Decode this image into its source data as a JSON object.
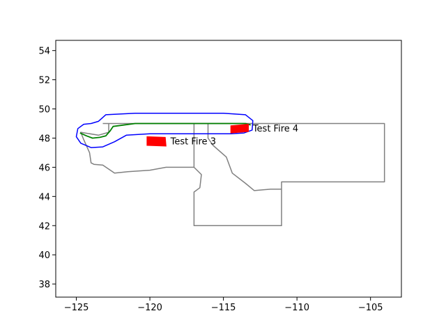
{
  "chart_data": {
    "type": "map",
    "title": "",
    "xlabel": "",
    "ylabel": "",
    "xlim": [
      -126.4,
      -102.9
    ],
    "ylim": [
      37.1,
      54.7
    ],
    "grid": false,
    "x_ticks": [
      -125,
      -120,
      -115,
      -110,
      -105
    ],
    "y_ticks": [
      38,
      40,
      42,
      44,
      46,
      48,
      50,
      52,
      54
    ],
    "x_tick_labels": [
      "−125",
      "−120",
      "−115",
      "−110",
      "−105"
    ],
    "y_tick_labels": [
      "38",
      "40",
      "42",
      "44",
      "46",
      "48",
      "50",
      "52",
      "54"
    ],
    "colors": {
      "states": "#808080",
      "border": "#008000",
      "buffer": "#0000ff",
      "fire": "#ff0000"
    },
    "states_outline": [
      [
        [
          -123.2,
          49.0
        ],
        [
          -117.0,
          49.0
        ],
        [
          -116.05,
          49.0
        ],
        [
          -111.0,
          49.0
        ],
        [
          -104.05,
          49.0
        ],
        [
          -104.05,
          45.0
        ],
        [
          -111.05,
          45.0
        ],
        [
          -111.05,
          44.5
        ],
        [
          -111.05,
          42.0
        ],
        [
          -117.0,
          42.0
        ],
        [
          -117.0,
          44.3
        ],
        [
          -116.6,
          44.6
        ],
        [
          -116.5,
          45.5
        ],
        [
          -117.0,
          46.0
        ],
        [
          -118.9,
          46.0
        ],
        [
          -120.0,
          45.8
        ],
        [
          -121.5,
          45.7
        ],
        [
          -122.4,
          45.6
        ],
        [
          -123.2,
          46.15
        ],
        [
          -123.8,
          46.2
        ],
        [
          -124.0,
          46.3
        ],
        [
          -124.1,
          47.0
        ],
        [
          -124.5,
          47.9
        ],
        [
          -124.7,
          48.4
        ],
        [
          -123.5,
          48.2
        ],
        [
          -122.8,
          48.4
        ],
        [
          -122.8,
          49.0
        ]
      ],
      [
        [
          -117.0,
          49.0
        ],
        [
          -117.0,
          46.0
        ]
      ],
      [
        [
          -116.05,
          49.0
        ],
        [
          -116.05,
          48.0
        ],
        [
          -115.7,
          47.5
        ],
        [
          -114.8,
          46.7
        ],
        [
          -114.4,
          45.6
        ],
        [
          -113.5,
          44.9
        ],
        [
          -112.9,
          44.4
        ],
        [
          -111.8,
          44.5
        ],
        [
          -111.05,
          44.5
        ]
      ]
    ],
    "border_line": [
      [
        -124.75,
        48.35
      ],
      [
        -124.3,
        48.15
      ],
      [
        -123.9,
        48.0
      ],
      [
        -123.4,
        48.05
      ],
      [
        -123.0,
        48.15
      ],
      [
        -122.7,
        48.5
      ],
      [
        -122.5,
        48.8
      ],
      [
        -121.0,
        49.0
      ],
      [
        -119.0,
        49.0
      ],
      [
        -117.0,
        49.0
      ],
      [
        -115.0,
        49.0
      ],
      [
        -113.5,
        49.0
      ],
      [
        -113.15,
        48.9
      ]
    ],
    "buffer_outline": [
      [
        -124.0,
        49.0
      ],
      [
        -123.5,
        49.15
      ],
      [
        -123.0,
        49.6
      ],
      [
        -121.0,
        49.7
      ],
      [
        -119.0,
        49.7
      ],
      [
        -117.0,
        49.7
      ],
      [
        -115.0,
        49.7
      ],
      [
        -113.5,
        49.6
      ],
      [
        -113.0,
        49.2
      ],
      [
        -113.05,
        48.55
      ],
      [
        -113.6,
        48.35
      ],
      [
        -114.5,
        48.3
      ],
      [
        -116.0,
        48.3
      ],
      [
        -118.0,
        48.3
      ],
      [
        -120.0,
        48.3
      ],
      [
        -121.6,
        48.2
      ],
      [
        -122.4,
        47.75
      ],
      [
        -123.2,
        47.4
      ],
      [
        -124.0,
        47.35
      ],
      [
        -124.7,
        47.65
      ],
      [
        -125.0,
        48.1
      ],
      [
        -124.9,
        48.65
      ],
      [
        -124.5,
        48.95
      ],
      [
        -124.0,
        49.0
      ]
    ],
    "fires": [
      {
        "label": "Test Fire 3",
        "polygon": [
          [
            -120.2,
            47.5
          ],
          [
            -118.9,
            47.45
          ],
          [
            -118.95,
            48.05
          ],
          [
            -120.2,
            48.1
          ]
        ],
        "label_pos": [
          -118.6,
          47.8
        ]
      },
      {
        "label": "Test Fire 4",
        "polygon": [
          [
            -114.5,
            48.35
          ],
          [
            -113.3,
            48.45
          ],
          [
            -113.3,
            48.95
          ],
          [
            -114.5,
            48.85
          ]
        ],
        "label_pos": [
          -113.0,
          48.7
        ]
      }
    ]
  }
}
